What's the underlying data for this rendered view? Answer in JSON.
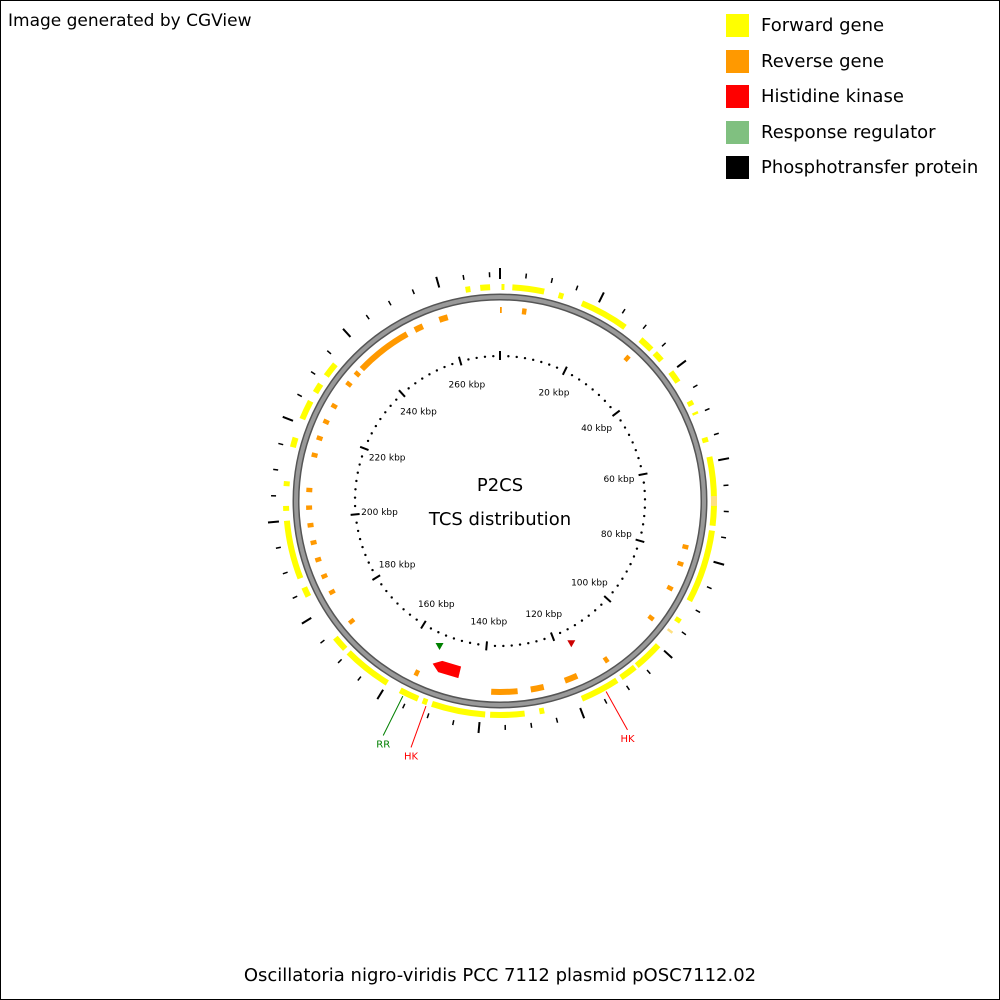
{
  "credit": "Image generated by CGView",
  "legend": [
    {
      "label": "Forward gene",
      "color": "#ffff00"
    },
    {
      "label": "Reverse gene",
      "color": "#ff9900"
    },
    {
      "label": "Histidine kinase",
      "color": "#ff0000"
    },
    {
      "label": "Response regulator",
      "color": "#80c080"
    },
    {
      "label": "Phosphotransfer protein",
      "color": "#000000"
    }
  ],
  "center": {
    "line1": "P2CS",
    "line2": "TCS distribution"
  },
  "footer": "Oscillatoria nigro-viridis PCC 7112 plasmid pOSC7112.02",
  "map": {
    "sequence_length_kbp": 272,
    "tick_labels": [
      "260 kbp",
      "20 kbp",
      "40 kbp",
      "60 kbp",
      "80 kbp",
      "100 kbp",
      "120 kbp",
      "140 kbp",
      "160 kbp",
      "180 kbp",
      "200 kbp",
      "220 kbp",
      "240 kbp"
    ],
    "forward_color": "#ffff00",
    "reverse_color": "#ff9900",
    "backbone_color": "#888888",
    "annotations": [
      {
        "label": "RR",
        "color": "#008000",
        "position_kbp": 156
      },
      {
        "label": "HK",
        "color": "#ff0000",
        "position_kbp": 151
      },
      {
        "label": "HK",
        "color": "#ff0000",
        "position_kbp": 114
      }
    ]
  }
}
